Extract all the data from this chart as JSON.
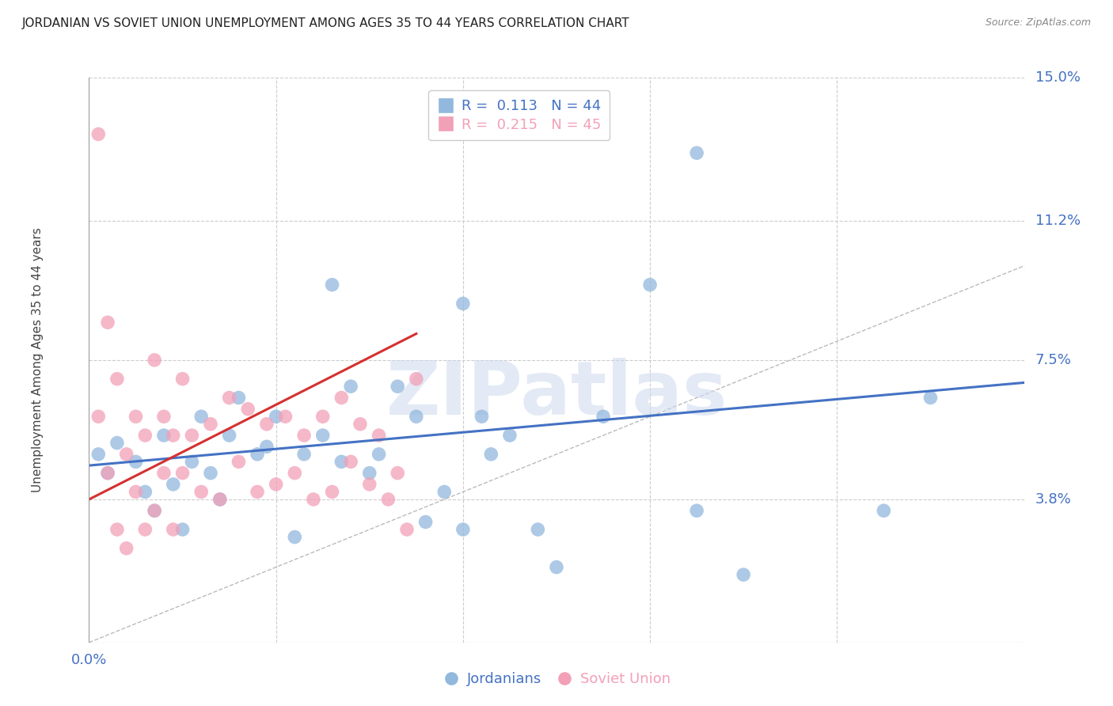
{
  "title": "JORDANIAN VS SOVIET UNION UNEMPLOYMENT AMONG AGES 35 TO 44 YEARS CORRELATION CHART",
  "source": "Source: ZipAtlas.com",
  "ylabel": "Unemployment Among Ages 35 to 44 years",
  "xlim": [
    0,
    0.1
  ],
  "ylim": [
    0,
    0.15
  ],
  "ytick_right_values": [
    0.038,
    0.075,
    0.112,
    0.15
  ],
  "ytick_right_labels": [
    "3.8%",
    "7.5%",
    "11.2%",
    "15.0%"
  ],
  "watermark": "ZIPatlas",
  "jordanians_x": [
    0.001,
    0.002,
    0.003,
    0.005,
    0.006,
    0.007,
    0.008,
    0.009,
    0.01,
    0.011,
    0.012,
    0.013,
    0.014,
    0.015,
    0.016,
    0.018,
    0.019,
    0.02,
    0.022,
    0.023,
    0.025,
    0.026,
    0.027,
    0.028,
    0.03,
    0.031,
    0.033,
    0.035,
    0.036,
    0.038,
    0.04,
    0.042,
    0.043,
    0.045,
    0.048,
    0.05,
    0.055,
    0.06,
    0.065,
    0.07,
    0.085,
    0.09,
    0.04,
    0.065
  ],
  "jordanians_y": [
    0.05,
    0.045,
    0.053,
    0.048,
    0.04,
    0.035,
    0.055,
    0.042,
    0.03,
    0.048,
    0.06,
    0.045,
    0.038,
    0.055,
    0.065,
    0.05,
    0.052,
    0.06,
    0.028,
    0.05,
    0.055,
    0.095,
    0.048,
    0.068,
    0.045,
    0.05,
    0.068,
    0.06,
    0.032,
    0.04,
    0.03,
    0.06,
    0.05,
    0.055,
    0.03,
    0.02,
    0.06,
    0.095,
    0.035,
    0.018,
    0.035,
    0.065,
    0.09,
    0.13
  ],
  "soviet_x": [
    0.001,
    0.001,
    0.002,
    0.002,
    0.003,
    0.003,
    0.004,
    0.004,
    0.005,
    0.005,
    0.006,
    0.006,
    0.007,
    0.007,
    0.008,
    0.008,
    0.009,
    0.009,
    0.01,
    0.01,
    0.011,
    0.012,
    0.013,
    0.014,
    0.015,
    0.016,
    0.017,
    0.018,
    0.019,
    0.02,
    0.021,
    0.022,
    0.023,
    0.024,
    0.025,
    0.026,
    0.027,
    0.028,
    0.029,
    0.03,
    0.031,
    0.032,
    0.033,
    0.034,
    0.035
  ],
  "soviet_y": [
    0.135,
    0.06,
    0.085,
    0.045,
    0.07,
    0.03,
    0.05,
    0.025,
    0.06,
    0.04,
    0.055,
    0.03,
    0.075,
    0.035,
    0.06,
    0.045,
    0.055,
    0.03,
    0.07,
    0.045,
    0.055,
    0.04,
    0.058,
    0.038,
    0.065,
    0.048,
    0.062,
    0.04,
    0.058,
    0.042,
    0.06,
    0.045,
    0.055,
    0.038,
    0.06,
    0.04,
    0.065,
    0.048,
    0.058,
    0.042,
    0.055,
    0.038,
    0.045,
    0.03,
    0.07
  ],
  "blue_color": "#92b8de",
  "pink_color": "#f2a0b8",
  "trend_blue": "#4472c4",
  "trend_pink": "#d63030",
  "grid_color": "#cccccc",
  "axis_label_color": "#4472c4",
  "title_color": "#222222",
  "background_color": "#ffffff",
  "blue_trend_x": [
    0.0,
    0.1
  ],
  "blue_trend_y": [
    0.047,
    0.069
  ],
  "pink_trend_x": [
    0.0,
    0.035
  ],
  "pink_trend_y": [
    0.038,
    0.082
  ]
}
